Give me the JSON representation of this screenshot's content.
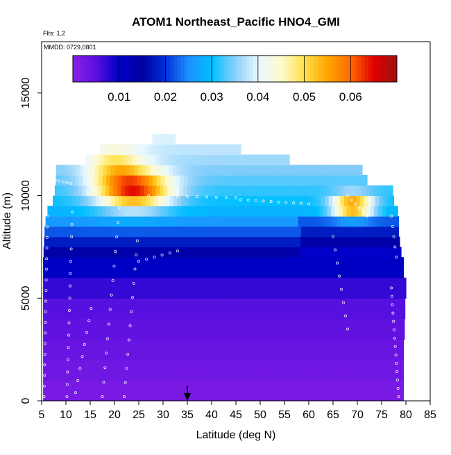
{
  "chart_data": {
    "type": "heatmap",
    "title": "ATOM1 Northeast_Pacific HNO4_GMI",
    "flights_label": "Flts: 1,2",
    "date_label": "MMDD: 0729,0801",
    "xlabel": "Latitude (deg N)",
    "ylabel": "Altitude (m)",
    "xlim": [
      5,
      85
    ],
    "ylim": [
      0,
      17500
    ],
    "x_ticks": [
      "5",
      "10",
      "15",
      "20",
      "25",
      "30",
      "35",
      "40",
      "45",
      "50",
      "55",
      "60",
      "65",
      "70",
      "75",
      "80",
      "85"
    ],
    "y_ticks": [
      "0",
      "5000",
      "10000",
      "15000"
    ],
    "colorbar": {
      "range": [
        0,
        0.07
      ],
      "tick_labels": [
        "0.01",
        "0.02",
        "0.03",
        "0.04",
        "0.05",
        "0.06"
      ],
      "tick_values": [
        0.01,
        0.02,
        0.03,
        0.04,
        0.05,
        0.06
      ],
      "colors": [
        "#8b1fe6",
        "#5a10e0",
        "#0000c8",
        "#0000a0",
        "#0030d8",
        "#1e90ff",
        "#00bfff",
        "#87cefa",
        "#e8f8ff",
        "#fffacd",
        "#ffe14a",
        "#ffa500",
        "#ff6a00",
        "#e00000",
        "#a01010"
      ]
    },
    "arrow_marker_latitude": 35,
    "grid": false,
    "legend": "colorbar top"
  }
}
